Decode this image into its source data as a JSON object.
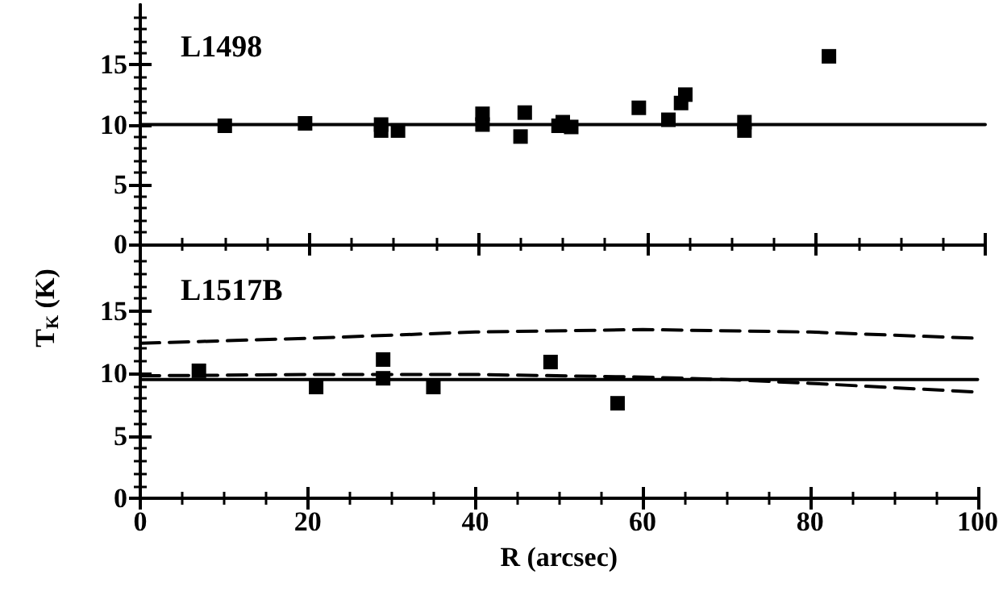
{
  "chart_data": [
    {
      "type": "scatter",
      "title": "L1498",
      "marker": "square",
      "tick_labels": "y",
      "grid": false,
      "xlim": [
        0,
        100
      ],
      "xticks": [
        0,
        20,
        40,
        60,
        80,
        100
      ],
      "ylim": [
        0,
        20
      ],
      "yticks": [
        0,
        5,
        10,
        15
      ],
      "series": [
        {
          "color": "#000000",
          "x": [
            10,
            19.5,
            28.5,
            28.5,
            30.5,
            40.5,
            40.5,
            45,
            45.5,
            49.5,
            50,
            51,
            59,
            62.5,
            64,
            64.5,
            71.5,
            71.5,
            81.5
          ],
          "values": [
            9.9,
            10.1,
            9.5,
            10,
            9.5,
            10,
            10.9,
            9,
            11,
            9.9,
            10.2,
            9.8,
            11.4,
            10.4,
            11.8,
            12.5,
            10.2,
            9.5,
            15.7
          ]
        },
        {
          "type": "line",
          "color": "#000000",
          "line_style": "solid",
          "marker": "none",
          "x": [
            0,
            100
          ],
          "values": [
            10,
            10
          ]
        }
      ]
    },
    {
      "type": "scatter",
      "title": "L1517B",
      "marker": "square",
      "grid": false,
      "xlabel": "R (arcsec)",
      "ylabel": "T$_{K}$ (K)",
      "xlim": [
        0,
        100
      ],
      "xticks": [
        0,
        20,
        40,
        60,
        80,
        100
      ],
      "ylim": [
        0,
        20
      ],
      "yticks": [
        0,
        5,
        10,
        15
      ],
      "series": [
        {
          "color": "#000000",
          "x": [
            7,
            21,
            29,
            29,
            35,
            49,
            57
          ],
          "values": [
            10.2,
            8.9,
            11.1,
            9.6,
            8.9,
            10.9,
            7.6
          ]
        },
        {
          "type": "line",
          "color": "#000000",
          "line_style": "solid",
          "marker": "none",
          "x": [
            0,
            100
          ],
          "values": [
            9.5,
            9.5
          ]
        },
        {
          "type": "line",
          "color": "#000000",
          "line_style": "dashed",
          "marker": "none",
          "x": [
            0,
            20,
            40,
            60,
            80,
            100
          ],
          "values": [
            12.4,
            12.8,
            13.3,
            13.5,
            13.3,
            12.8
          ]
        },
        {
          "type": "line",
          "color": "#000000",
          "line_style": "dashed",
          "marker": "none",
          "x": [
            0,
            20,
            40,
            60,
            70,
            80,
            100
          ],
          "values": [
            9.8,
            9.9,
            9.9,
            9.7,
            9.5,
            9.2,
            8.5
          ]
        }
      ]
    }
  ]
}
